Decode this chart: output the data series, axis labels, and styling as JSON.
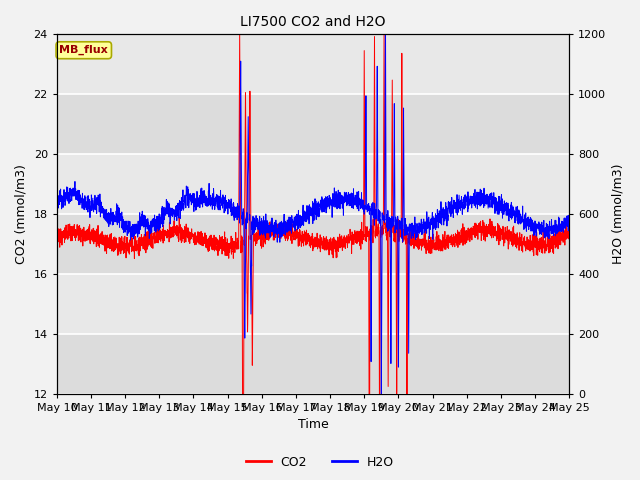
{
  "title": "LI7500 CO2 and H2O",
  "xlabel": "Time",
  "ylabel_left": "CO2 (mmol/m3)",
  "ylabel_right": "H2O (mmol/m3)",
  "ylim_left": [
    12,
    24
  ],
  "ylim_right": [
    0,
    1200
  ],
  "yticks_left": [
    12,
    14,
    16,
    18,
    20,
    22,
    24
  ],
  "yticks_right": [
    0,
    200,
    400,
    600,
    800,
    1000,
    1200
  ],
  "xtick_labels": [
    "May 10",
    "May 11",
    "May 12",
    "May 13",
    "May 14",
    "May 15",
    "May 16",
    "May 17",
    "May 18",
    "May 19",
    "May 20",
    "May 21",
    "May 22",
    "May 23",
    "May 24",
    "May 25"
  ],
  "text_box_label": "MB_flux",
  "text_box_bg": "#FFFF99",
  "text_box_border": "#CCCC00",
  "text_box_color": "#990000",
  "co2_color": "#FF0000",
  "h2o_color": "#0000FF",
  "plot_bg": "#E8E8E8",
  "band_light": "#EBEBEB",
  "band_dark": "#DCDCDC",
  "grid_color": "#FFFFFF",
  "legend_co2": "CO2",
  "legend_h2o": "H2O",
  "seed": 42
}
